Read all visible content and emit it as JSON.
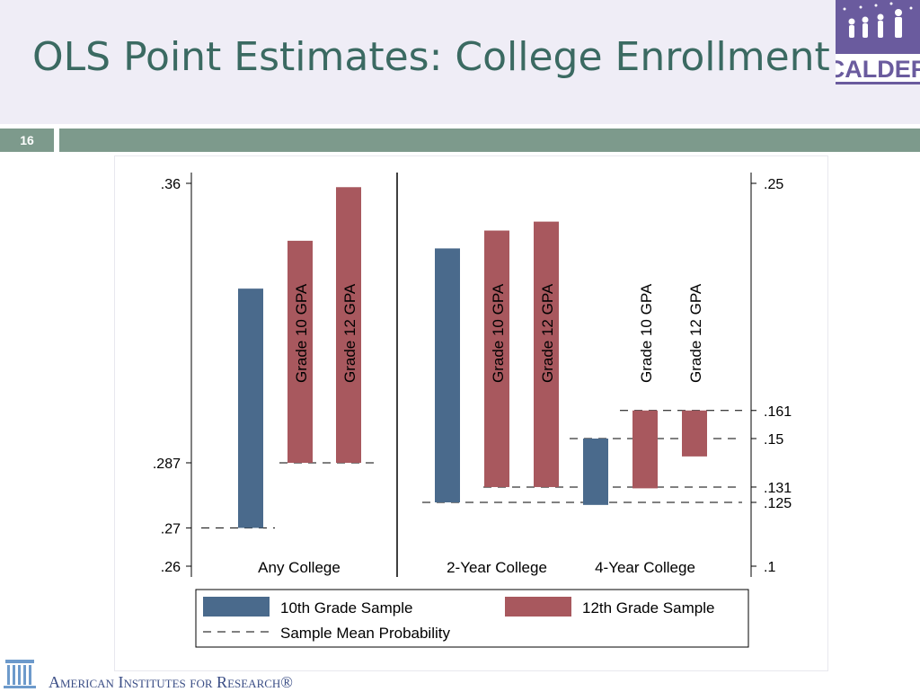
{
  "slide": {
    "title": "OLS Point Estimates: College Enrollment",
    "number": "16",
    "logo_text": "CALDER",
    "footer": "American Institutes for Research®"
  },
  "chart_data": {
    "type": "bar",
    "panels": [
      {
        "group": "Any College",
        "axis": "left",
        "ylim": [
          0.26,
          0.36
        ],
        "ticks": [
          ".36",
          ".287",
          ".27",
          ".26"
        ],
        "tick_values": [
          0.36,
          0.287,
          0.27,
          0.26
        ],
        "bars": [
          {
            "series": "10th Grade Sample",
            "label": "",
            "value": 0.3325,
            "baseline": 0.27
          },
          {
            "series": "12th Grade Sample",
            "label": "Grade 10 GPA",
            "value": 0.345,
            "baseline": 0.287
          },
          {
            "series": "12th Grade Sample",
            "label": "Grade 12 GPA",
            "value": 0.359,
            "baseline": 0.287
          }
        ],
        "mean_lines": [
          0.27,
          0.287
        ]
      },
      {
        "group": "2-Year College",
        "axis": "right",
        "ylim": [
          0.1,
          0.25
        ],
        "bars": [
          {
            "series": "10th Grade Sample",
            "label": "",
            "value": 0.2245,
            "baseline": 0.125
          },
          {
            "series": "12th Grade Sample",
            "label": "Grade 10 GPA",
            "value": 0.2315,
            "baseline": 0.131
          },
          {
            "series": "12th Grade Sample",
            "label": "Grade 12 GPA",
            "value": 0.235,
            "baseline": 0.131
          }
        ],
        "mean_lines": [
          0.125,
          0.131
        ]
      },
      {
        "group": "4-Year College",
        "axis": "right",
        "ylim": [
          0.1,
          0.25
        ],
        "bars": [
          {
            "series": "10th Grade Sample",
            "label": "",
            "value": 0.124,
            "baseline": 0.15
          },
          {
            "series": "12th Grade Sample",
            "label": "Grade 10 GPA",
            "value": 0.1305,
            "baseline": 0.161
          },
          {
            "series": "12th Grade Sample",
            "label": "Grade 12 GPA",
            "value": 0.143,
            "baseline": 0.161
          }
        ],
        "mean_lines": [
          0.15,
          0.161
        ]
      }
    ],
    "right_axis": {
      "ticks": [
        ".25",
        ".161",
        ".15",
        ".131",
        ".125",
        ".1"
      ],
      "tick_values": [
        0.25,
        0.161,
        0.15,
        0.131,
        0.125,
        0.1
      ]
    },
    "legend": {
      "placement": "bottom",
      "items": [
        {
          "name": "10th Grade Sample",
          "kind": "box",
          "color": "#4a6a8c"
        },
        {
          "name": "12th Grade Sample",
          "kind": "box",
          "color": "#a8585e"
        },
        {
          "name": "Sample Mean Probability",
          "kind": "dash",
          "color": "#000000"
        }
      ]
    },
    "colors": {
      "tenth": "#4a6a8c",
      "twelfth": "#a8585e"
    }
  }
}
